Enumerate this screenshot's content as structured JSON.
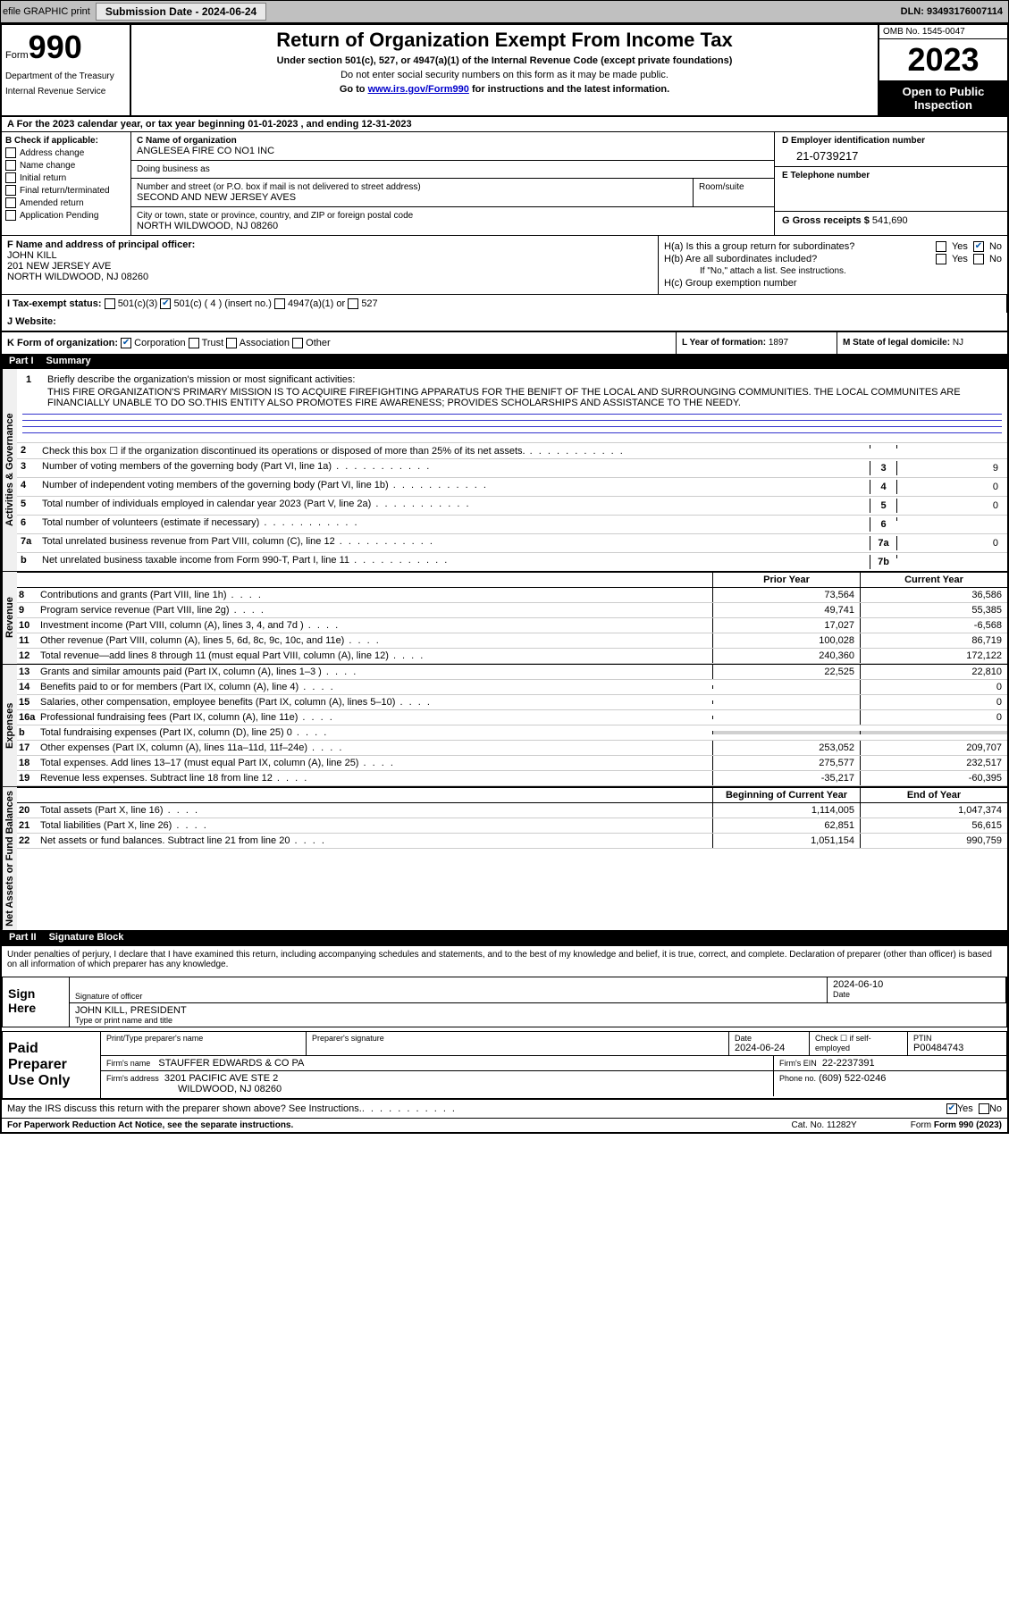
{
  "toolbar": {
    "efile": "efile GRAPHIC print",
    "submission_label": "Submission Date - 2024-06-24",
    "dln": "DLN: 93493176007114"
  },
  "header": {
    "form_prefix": "Form",
    "form_number": "990",
    "dept1": "Department of the Treasury",
    "dept2": "Internal Revenue Service",
    "title": "Return of Organization Exempt From Income Tax",
    "subtitle": "Under section 501(c), 527, or 4947(a)(1) of the Internal Revenue Code (except private foundations)",
    "ssn_text": "Do not enter social security numbers on this form as it may be made public.",
    "goto": "Go to ",
    "goto_link": "www.irs.gov/Form990",
    "goto_after": " for instructions and the latest information.",
    "omb": "OMB No. 1545-0047",
    "year": "2023",
    "open": "Open to Public Inspection"
  },
  "row_a": "A   For the 2023 calendar year, or tax year beginning 01-01-2023    , and ending 12-31-2023",
  "col_b": {
    "title": "B Check if applicable:",
    "items": [
      "Address change",
      "Name change",
      "Initial return",
      "Final return/terminated",
      "Amended return",
      "Application Pending"
    ]
  },
  "col_c": {
    "name_lbl": "C Name of organization",
    "name": "ANGLESEA FIRE CO NO1 INC",
    "dba_lbl": "Doing business as",
    "addr_lbl": "Number and street (or P.O. box if mail is not delivered to street address)",
    "addr": "SECOND AND NEW JERSEY AVES",
    "room_lbl": "Room/suite",
    "city_lbl": "City or town, state or province, country, and ZIP or foreign postal code",
    "city": "NORTH WILDWOOD, NJ  08260"
  },
  "col_d": {
    "lbl": "D Employer identification number",
    "val": "21-0739217"
  },
  "col_e": {
    "lbl": "E Telephone number"
  },
  "col_g": {
    "lbl": "G Gross receipts $",
    "val": "541,690"
  },
  "col_f": {
    "lbl": "F  Name and address of principal officer:",
    "name": "JOHN KILL",
    "addr1": "201 NEW JERSEY AVE",
    "addr2": "NORTH WILDWOOD, NJ  08260"
  },
  "col_h": {
    "ha": "H(a)  Is this a group return for subordinates?",
    "hb": "H(b)  Are all subordinates included?",
    "hb_note": "If \"No,\" attach a list. See instructions.",
    "hc": "H(c)  Group exemption number",
    "yes": "Yes",
    "no": "No"
  },
  "row_i": {
    "lbl": "I   Tax-exempt status:",
    "a": "501(c)(3)",
    "b": "501(c) ( 4 ) (insert no.)",
    "c": "4947(a)(1) or",
    "d": "527"
  },
  "row_j": {
    "lbl": "J   Website:"
  },
  "row_k": {
    "lbl": "K Form of organization:",
    "opts": [
      "Corporation",
      "Trust",
      "Association",
      "Other"
    ]
  },
  "col_l": {
    "lbl": "L Year of formation:",
    "val": "1897"
  },
  "col_m": {
    "lbl": "M State of legal domicile:",
    "val": "NJ"
  },
  "part1": {
    "label": "Part I",
    "title": "Summary"
  },
  "mission": {
    "num": "1",
    "lbl": "Briefly describe the organization's mission or most significant activities:",
    "text": "THIS FIRE ORGANIZATION'S PRIMARY MISSION IS TO ACQUIRE FIREFIGHTING APPARATUS FOR THE BENIFT OF THE LOCAL AND SURROUNGING COMMUNITIES. THE LOCAL COMMUNITES ARE FINANCIALLY UNABLE TO DO SO.THIS ENTITY ALSO PROMOTES FIRE AWARENESS; PROVIDES SCHOLARSHIPS AND ASSISTANCE TO THE NEEDY."
  },
  "gov_rows": [
    {
      "num": "2",
      "text": "Check this box ☐ if the organization discontinued its operations or disposed of more than 25% of its net assets.",
      "box": "",
      "val": ""
    },
    {
      "num": "3",
      "text": "Number of voting members of the governing body (Part VI, line 1a)",
      "box": "3",
      "val": "9"
    },
    {
      "num": "4",
      "text": "Number of independent voting members of the governing body (Part VI, line 1b)",
      "box": "4",
      "val": "0"
    },
    {
      "num": "5",
      "text": "Total number of individuals employed in calendar year 2023 (Part V, line 2a)",
      "box": "5",
      "val": "0"
    },
    {
      "num": "6",
      "text": "Total number of volunteers (estimate if necessary)",
      "box": "6",
      "val": ""
    },
    {
      "num": "7a",
      "text": "Total unrelated business revenue from Part VIII, column (C), line 12",
      "box": "7a",
      "val": "0"
    },
    {
      "num": "b",
      "text": "Net unrelated business taxable income from Form 990-T, Part I, line 11",
      "box": "7b",
      "val": ""
    }
  ],
  "side_labels": {
    "gov": "Activities & Governance",
    "rev": "Revenue",
    "exp": "Expenses",
    "net": "Net Assets or Fund Balances"
  },
  "year_headers": {
    "prior": "Prior Year",
    "current": "Current Year",
    "beg": "Beginning of Current Year",
    "end": "End of Year"
  },
  "revenue_rows": [
    {
      "num": "8",
      "text": "Contributions and grants (Part VIII, line 1h)",
      "prior": "73,564",
      "current": "36,586"
    },
    {
      "num": "9",
      "text": "Program service revenue (Part VIII, line 2g)",
      "prior": "49,741",
      "current": "55,385"
    },
    {
      "num": "10",
      "text": "Investment income (Part VIII, column (A), lines 3, 4, and 7d )",
      "prior": "17,027",
      "current": "-6,568"
    },
    {
      "num": "11",
      "text": "Other revenue (Part VIII, column (A), lines 5, 6d, 8c, 9c, 10c, and 11e)",
      "prior": "100,028",
      "current": "86,719"
    },
    {
      "num": "12",
      "text": "Total revenue—add lines 8 through 11 (must equal Part VIII, column (A), line 12)",
      "prior": "240,360",
      "current": "172,122"
    }
  ],
  "expense_rows": [
    {
      "num": "13",
      "text": "Grants and similar amounts paid (Part IX, column (A), lines 1–3 )",
      "prior": "22,525",
      "current": "22,810"
    },
    {
      "num": "14",
      "text": "Benefits paid to or for members (Part IX, column (A), line 4)",
      "prior": "",
      "current": "0"
    },
    {
      "num": "15",
      "text": "Salaries, other compensation, employee benefits (Part IX, column (A), lines 5–10)",
      "prior": "",
      "current": "0"
    },
    {
      "num": "16a",
      "text": "Professional fundraising fees (Part IX, column (A), line 11e)",
      "prior": "",
      "current": "0"
    },
    {
      "num": "b",
      "text": "Total fundraising expenses (Part IX, column (D), line 25) 0",
      "prior": "GRAY",
      "current": "GRAY"
    },
    {
      "num": "17",
      "text": "Other expenses (Part IX, column (A), lines 11a–11d, 11f–24e)",
      "prior": "253,052",
      "current": "209,707"
    },
    {
      "num": "18",
      "text": "Total expenses. Add lines 13–17 (must equal Part IX, column (A), line 25)",
      "prior": "275,577",
      "current": "232,517"
    },
    {
      "num": "19",
      "text": "Revenue less expenses. Subtract line 18 from line 12",
      "prior": "-35,217",
      "current": "-60,395"
    }
  ],
  "net_rows": [
    {
      "num": "20",
      "text": "Total assets (Part X, line 16)",
      "prior": "1,114,005",
      "current": "1,047,374"
    },
    {
      "num": "21",
      "text": "Total liabilities (Part X, line 26)",
      "prior": "62,851",
      "current": "56,615"
    },
    {
      "num": "22",
      "text": "Net assets or fund balances. Subtract line 21 from line 20",
      "prior": "1,051,154",
      "current": "990,759"
    }
  ],
  "part2": {
    "label": "Part II",
    "title": "Signature Block"
  },
  "perjury": "Under penalties of perjury, I declare that I have examined this return, including accompanying schedules and statements, and to the best of my knowledge and belief, it is true, correct, and complete. Declaration of preparer (other than officer) is based on all information of which preparer has any knowledge.",
  "sign": {
    "here": "Sign Here",
    "sig_lbl": "Signature of officer",
    "name": "JOHN KILL, PRESIDENT",
    "name_lbl": "Type or print name and title",
    "date": "2024-06-10",
    "date_lbl": "Date"
  },
  "prep": {
    "label": "Paid Preparer Use Only",
    "print_lbl": "Print/Type preparer's name",
    "sig_lbl": "Preparer's signature",
    "date_lbl": "Date",
    "date": "2024-06-24",
    "check_lbl": "Check ☐ if self-employed",
    "ptin_lbl": "PTIN",
    "ptin": "P00484743",
    "firm_lbl": "Firm's name",
    "firm": "STAUFFER EDWARDS & CO PA",
    "ein_lbl": "Firm's EIN",
    "ein": "22-2237391",
    "addr_lbl": "Firm's address",
    "addr1": "3201 PACIFIC AVE STE 2",
    "addr2": "WILDWOOD, NJ  08260",
    "phone_lbl": "Phone no.",
    "phone": "(609) 522-0246"
  },
  "discuss": "May the IRS discuss this return with the preparer shown above? See Instructions.",
  "footer": {
    "paperwork": "For Paperwork Reduction Act Notice, see the separate instructions.",
    "cat": "Cat. No. 11282Y",
    "form": "Form 990 (2023)"
  }
}
